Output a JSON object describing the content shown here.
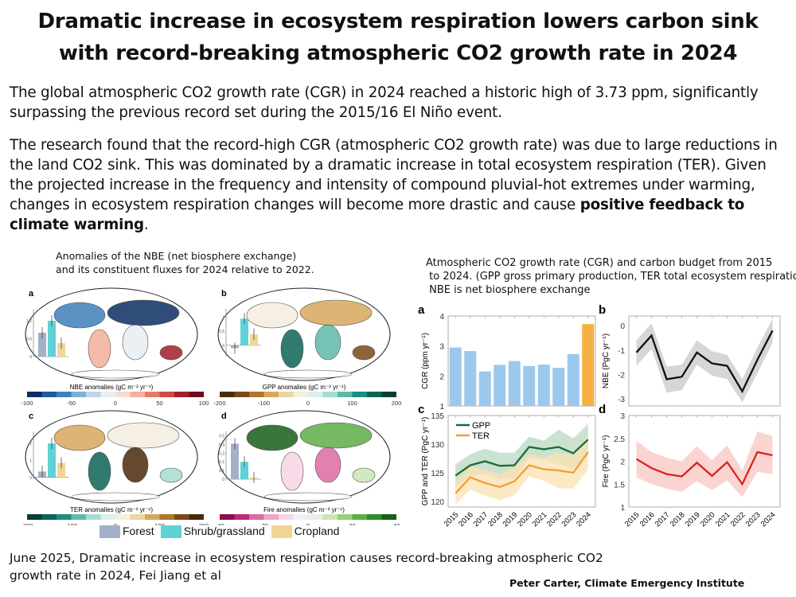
{
  "title": {
    "line1": "Dramatic increase in ecosystem respiration lowers carbon sink",
    "line2": "with record-breaking atmospheric CO2 growth rate in 2024"
  },
  "intro": "The global atmospheric CO2 growth rate (CGR) in 2024 reached a historic high of 3.73 ppm, significantly surpassing the previous record set during the 2015/16 El Niño event.",
  "findings": {
    "text": "The research found that the record-high CGR (atmospheric CO2 growth rate) was due to large reductions in the land CO2 sink. This was dominated by a dramatic increase in total ecosystem respiration (TER). Given the projected increase in the frequency and intensity of compound pluvial-hot extremes under warming, changes in ecosystem respiration changes will become more drastic and cause ",
    "bold": "positive feedback to climate warming",
    "end": "."
  },
  "maps_caption": {
    "line1": "Anomalies of the NBE (net biosphere exchange)",
    "line2": "and its constituent fluxes for 2024 relative to 2022."
  },
  "maps": [
    {
      "panel": "a",
      "colorbar_label": "NBE anomalies (gC m⁻² yr⁻¹)",
      "ticks": [
        "-100",
        "-50",
        "0",
        "50",
        "100"
      ],
      "colors": [
        "#0d2f63",
        "#1f5c9c",
        "#3f80bb",
        "#7eb1d6",
        "#b9d6ea",
        "#e8eef3",
        "#f7ddd0",
        "#f4b09a",
        "#e57b64",
        "#cf4a45",
        "#a41e2b",
        "#6b0e1d"
      ],
      "inset": {
        "ticks": [
          "0",
          "0.6",
          "1.2"
        ],
        "values": [
          0.8,
          1.2,
          0.45
        ],
        "ymax": 1.6,
        "ymin": 0
      }
    },
    {
      "panel": "b",
      "colorbar_label": "GPP anomalies (gC m⁻² yr⁻¹)",
      "ticks": [
        "-200",
        "-100",
        "0",
        "100",
        "200"
      ],
      "colors": [
        "#4a2a0c",
        "#7a4a16",
        "#b0752d",
        "#d6a85c",
        "#ecd59f",
        "#f4eedf",
        "#dcefec",
        "#a5dcd2",
        "#5fb9aa",
        "#1f8d80",
        "#0d6358",
        "#053f35"
      ],
      "inset": {
        "ticks": [
          "0",
          "0.5",
          "1"
        ],
        "values": [
          -0.1,
          0.95,
          0.4
        ],
        "ymax": 1.3,
        "ymin": -0.4
      }
    },
    {
      "panel": "c",
      "colorbar_label": "TER anomalies (gC m⁻² yr⁻¹)",
      "ticks": [
        "-200",
        "-100",
        "0",
        "100",
        "200"
      ],
      "colors": [
        "#053f35",
        "#0d6358",
        "#1f8d80",
        "#5fb9aa",
        "#a5dcd2",
        "#dcefec",
        "#f4eedf",
        "#ecd59f",
        "#d6a85c",
        "#b0752d",
        "#7a4a16",
        "#4a2a0c"
      ],
      "inset": {
        "ticks": [
          "0",
          "1",
          "2"
        ],
        "values": [
          0.35,
          2.0,
          0.85
        ],
        "ymax": 2.7,
        "ymin": -0.1
      }
    },
    {
      "panel": "d",
      "colorbar_label": "Fire anomalies (gC m⁻² yr⁻¹)",
      "ticks": [
        "-40",
        "-20",
        "0",
        "20",
        "40"
      ],
      "colors": [
        "#8e0f4d",
        "#c0297a",
        "#dd6aa5",
        "#eda5cb",
        "#f7d4e6",
        "#f5eef2",
        "#ececec",
        "#c9e6b4",
        "#98cf7c",
        "#5ead47",
        "#2f8a2b",
        "#175f1c"
      ],
      "inset": {
        "ticks": [
          "0",
          "0.1",
          "0.2",
          "0.3",
          "0.4",
          "0.5"
        ],
        "values": [
          0.41,
          0.2,
          0.02
        ],
        "ymax": 0.55,
        "ymin": 0
      }
    }
  ],
  "legend": [
    {
      "label": "Forest",
      "color": "#a3b0c8"
    },
    {
      "label": "Shrub/grassland",
      "color": "#5fd2d6"
    },
    {
      "label": "Cropland",
      "color": "#f2d595"
    }
  ],
  "charts_caption": {
    "line1": "Atmospheric CO2 growth rate (CGR) and carbon budget from 2015",
    "line2": " to 2024. (GPP gross primary production, TER total ecosystem respiratio",
    "line3": " NBE is net biosphere exchange"
  },
  "chart_data": [
    {
      "panel": "a",
      "type": "bar",
      "ylabel": "CGR (ppm yr⁻¹)",
      "ylim": [
        1,
        4
      ],
      "yticks": [
        1,
        2,
        3,
        4
      ],
      "categories": [
        "2015",
        "2016",
        "2017",
        "2018",
        "2019",
        "2020",
        "2021",
        "2022",
        "2023",
        "2024"
      ],
      "values": [
        2.95,
        2.83,
        2.15,
        2.37,
        2.5,
        2.33,
        2.38,
        2.27,
        2.73,
        3.73
      ],
      "colors": {
        "default": "#9cc8ee",
        "highlight": "#f5b041"
      }
    },
    {
      "panel": "b",
      "type": "line",
      "ylabel": "NBE (PgC yr⁻¹)",
      "ylim": [
        -3.3,
        0.4
      ],
      "yticks": [
        -3,
        -2,
        -1,
        0
      ],
      "x": [
        "2015",
        "2016",
        "2017",
        "2018",
        "2019",
        "2020",
        "2021",
        "2022",
        "2023",
        "2024"
      ],
      "series": [
        {
          "values": [
            -1.1,
            -0.4,
            -2.2,
            -2.1,
            -1.1,
            -1.55,
            -1.65,
            -2.7,
            -1.4,
            -0.2
          ],
          "lower": [
            -1.65,
            -0.95,
            -2.75,
            -2.65,
            -1.6,
            -2.05,
            -2.2,
            -3.15,
            -1.95,
            -0.7
          ],
          "upper": [
            -0.6,
            0.1,
            -1.68,
            -1.6,
            -0.6,
            -1.05,
            -1.2,
            -2.2,
            -0.9,
            0.28
          ],
          "color": "#111111",
          "band": "#c8c8c8"
        }
      ]
    },
    {
      "panel": "c",
      "type": "line",
      "ylabel": "GPP and TER (PgC yr⁻¹)",
      "ylim": [
        119,
        135
      ],
      "yticks": [
        120,
        125,
        130,
        135
      ],
      "x": [
        "2015",
        "2016",
        "2017",
        "2018",
        "2019",
        "2020",
        "2021",
        "2022",
        "2023",
        "2024"
      ],
      "legend": "top-left",
      "series": [
        {
          "name": "GPP",
          "values": [
            124.5,
            126.3,
            127,
            126.2,
            126.3,
            129.5,
            129.1,
            129.5,
            128.4,
            130.8
          ],
          "lower": [
            122.6,
            124.4,
            124.9,
            124,
            124.1,
            127.6,
            127.3,
            126.5,
            125.8,
            128.1
          ],
          "upper": [
            126.5,
            128.2,
            129.2,
            128.5,
            128.5,
            131.3,
            130.6,
            132.5,
            131,
            133.5
          ],
          "color": "#1e6b35",
          "band": "#b8d8bf"
        },
        {
          "name": "TER",
          "values": [
            121.4,
            124.2,
            123.2,
            122.5,
            123.5,
            126.3,
            125.6,
            125.4,
            125,
            128.6
          ],
          "lower": [
            119.4,
            122.1,
            121,
            120.2,
            121.1,
            124.4,
            123.6,
            122.3,
            122.2,
            125.6
          ],
          "upper": [
            123.4,
            126.2,
            125.5,
            124.8,
            125.9,
            128.3,
            127.7,
            128.5,
            128,
            131.6
          ],
          "color": "#f0a02e",
          "band": "#fbe0b0"
        }
      ]
    },
    {
      "panel": "d",
      "type": "line",
      "ylabel": "Fire (PgC yr⁻¹)",
      "ylim": [
        1,
        3
      ],
      "yticks": [
        1,
        1.5,
        2,
        2.5,
        3
      ],
      "x": [
        "2015",
        "2016",
        "2017",
        "2018",
        "2019",
        "2020",
        "2021",
        "2022",
        "2023",
        "2024"
      ],
      "series": [
        {
          "values": [
            2.05,
            1.85,
            1.72,
            1.67,
            1.97,
            1.68,
            1.98,
            1.5,
            2.2,
            2.13
          ],
          "lower": [
            1.65,
            1.5,
            1.4,
            1.33,
            1.57,
            1.37,
            1.58,
            1.22,
            1.77,
            1.72
          ],
          "upper": [
            2.45,
            2.2,
            2.08,
            2,
            2.33,
            2.02,
            2.35,
            1.8,
            2.65,
            2.55
          ],
          "color": "#d7261e",
          "band": "#f9c5c3"
        }
      ]
    }
  ],
  "footer": {
    "citation": "June 2025, Dramatic increase in ecosystem respiration causes record-breaking atmospheric CO2 growth rate in 2024, Fei Jiang et al",
    "credit": "Peter Carter, Climate Emergency Institute"
  }
}
